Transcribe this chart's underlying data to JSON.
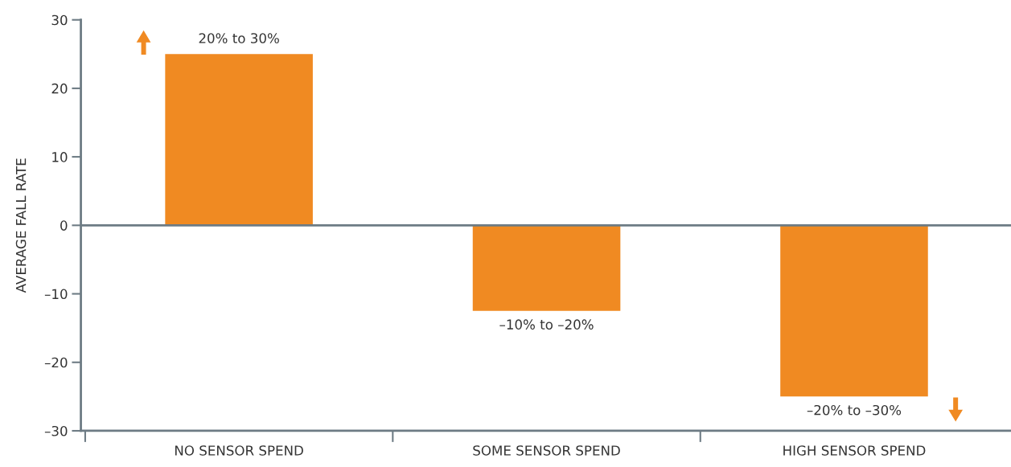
{
  "chart_data": {
    "type": "bar",
    "ylabel": "AVERAGE FALL RATE",
    "categories": [
      "NO SENSOR SPEND",
      "SOME SENSOR SPEND",
      "HIGH SENSOR SPEND"
    ],
    "values": [
      25,
      -12.5,
      -25
    ],
    "annotations": [
      {
        "text": "20% to 30%",
        "x": "NO SENSOR SPEND",
        "y": 25
      },
      {
        "text": "–10% to –20%",
        "x": "SOME SENSOR SPEND",
        "y": -12.5
      },
      {
        "text": "–20% to –30%",
        "x": "HIGH SENSOR SPEND",
        "y": -25
      }
    ],
    "color": "#f08a22",
    "ylim": [
      -30,
      30
    ],
    "yticks": [
      {
        "value": -30,
        "label": "–30"
      },
      {
        "value": -20,
        "label": "–20"
      },
      {
        "value": -10,
        "label": "–10"
      },
      0,
      10,
      20,
      30
    ],
    "ref_lines": [
      {
        "axis": "y",
        "value": 0,
        "label": null,
        "color": "#6d7b84"
      }
    ],
    "grid": false,
    "legend": false
  }
}
